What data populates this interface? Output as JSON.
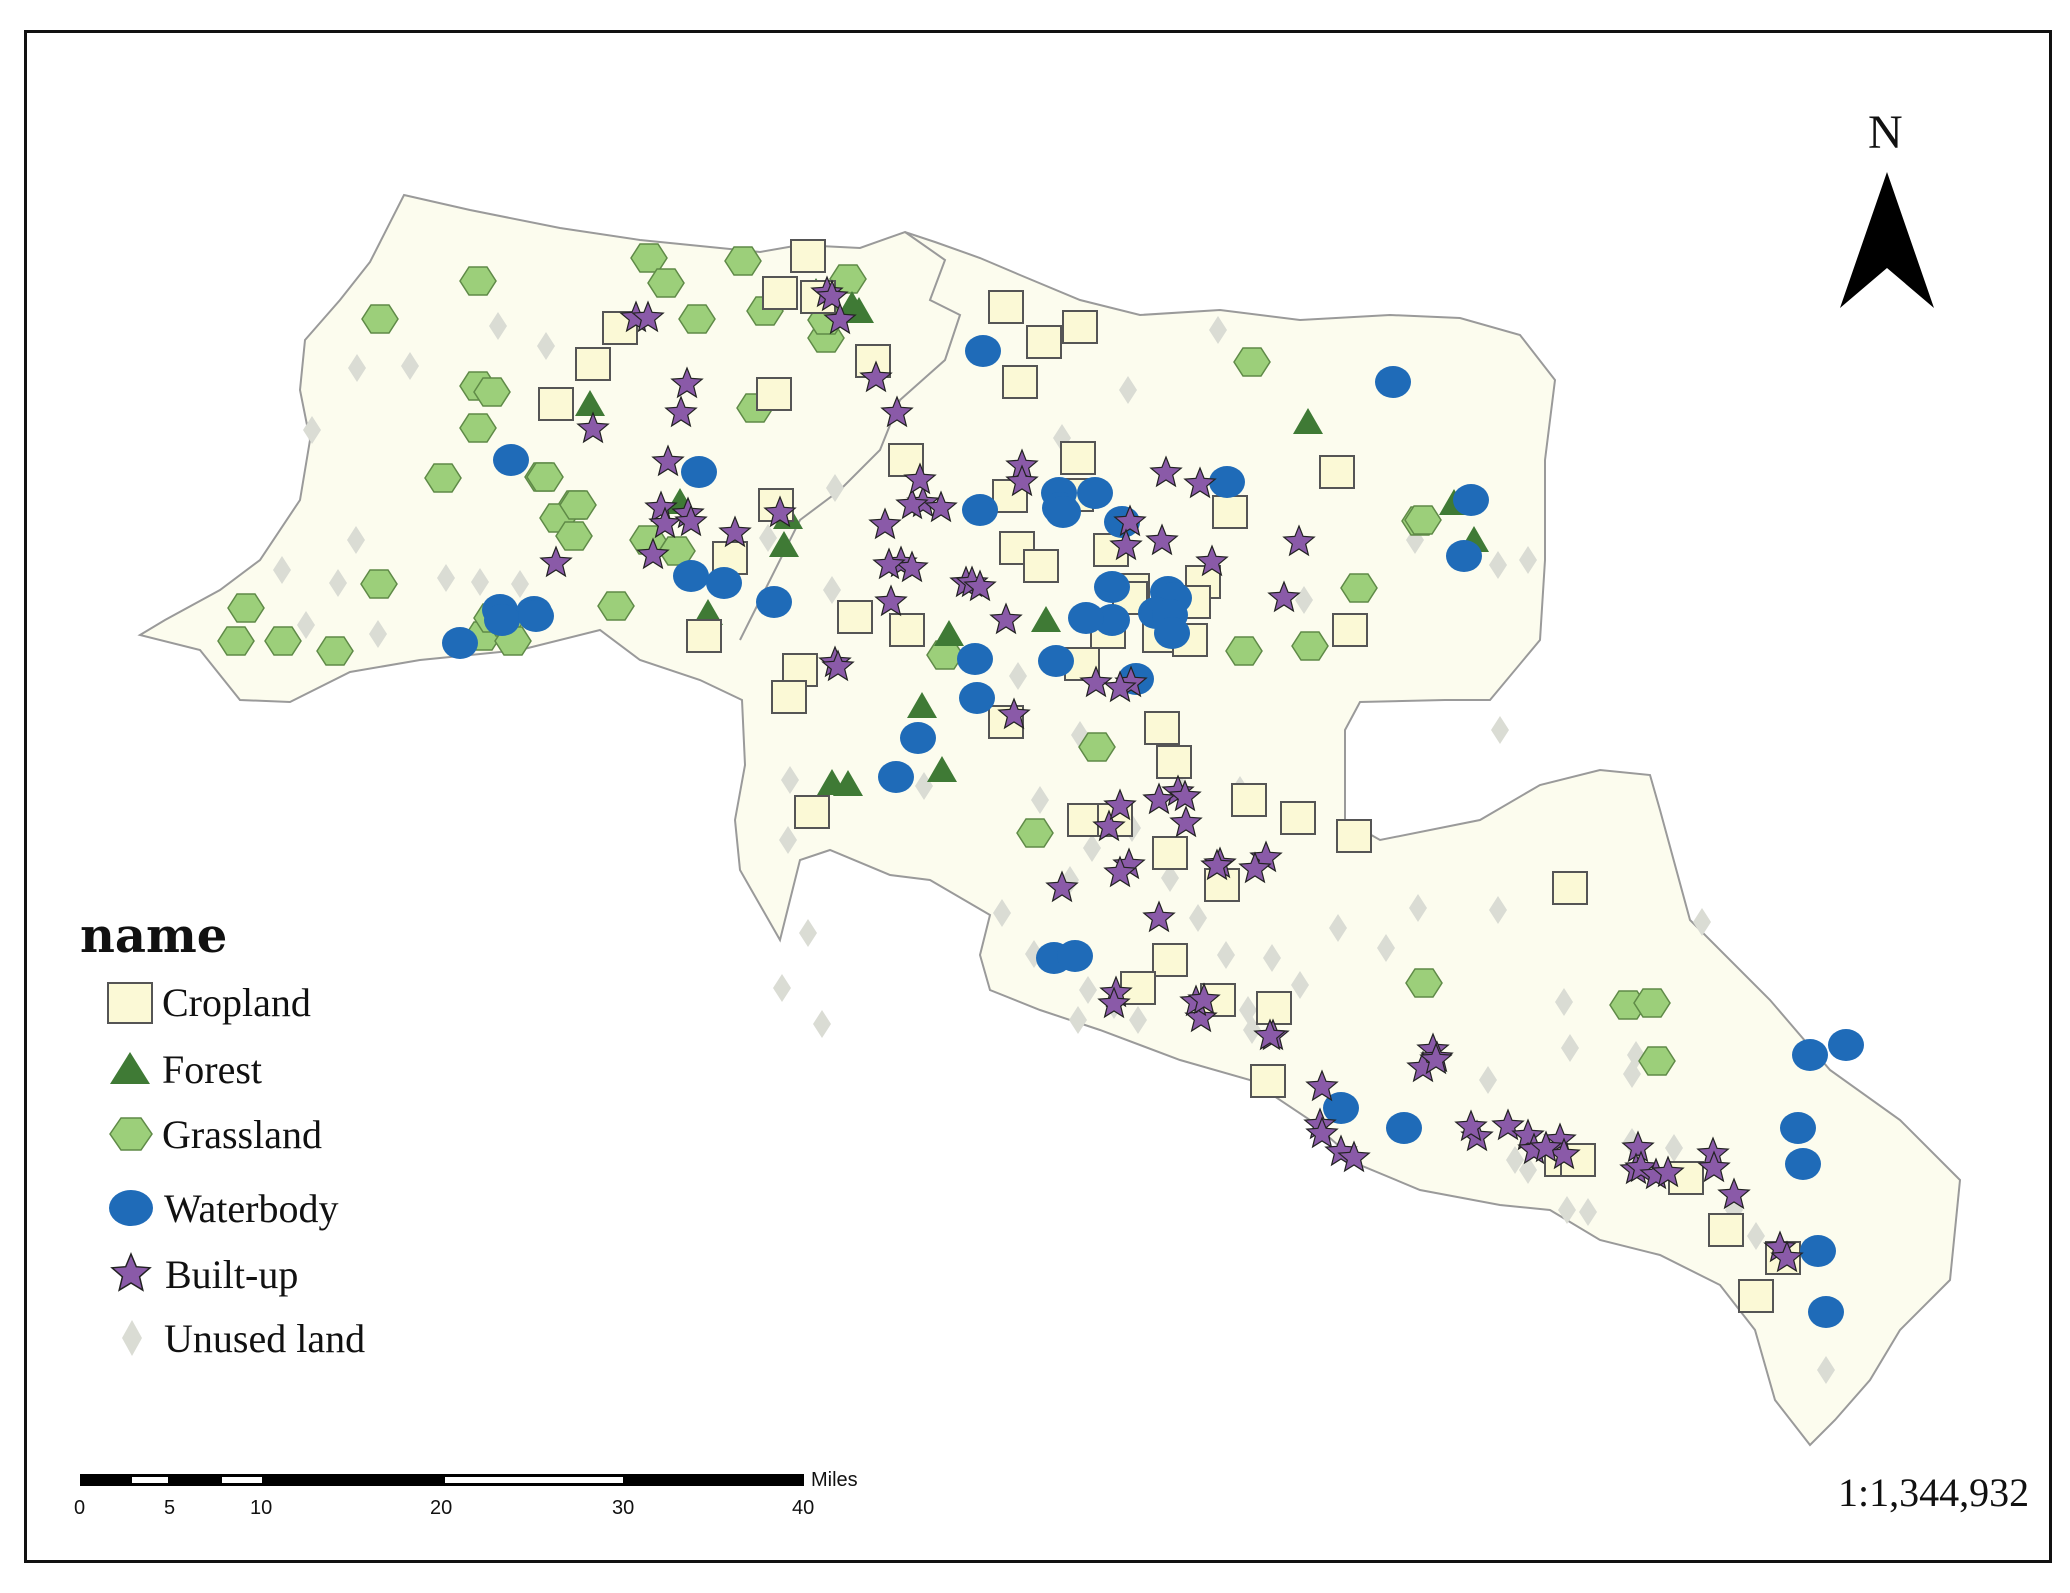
{
  "legend": {
    "title": "name",
    "items": [
      {
        "label": "Cropland",
        "symbol": "square",
        "color": "#fbf9d6"
      },
      {
        "label": "Forest",
        "symbol": "triangle",
        "color": "#3f7a35"
      },
      {
        "label": "Grassland",
        "symbol": "hexagon",
        "color": "#9ccf7a"
      },
      {
        "label": "Waterbody",
        "symbol": "circle",
        "color": "#1f6bb8"
      },
      {
        "label": "Built-up",
        "symbol": "star",
        "color": "#8a5aa8"
      },
      {
        "label": "Unused land",
        "symbol": "diamond",
        "color": "#dadcd4"
      }
    ]
  },
  "north_arrow": {
    "label": "N",
    "icon": "north-arrow-icon"
  },
  "scale_bar": {
    "unit": "Miles",
    "ticks": [
      "0",
      "5",
      "10",
      "20",
      "30",
      "40"
    ]
  },
  "scale_ratio": "1:1,344,932",
  "colors": {
    "region_fill": "#fcfcee",
    "region_border": "#9a9a9a",
    "square_stroke": "#555555",
    "star_stroke": "#222222"
  }
}
